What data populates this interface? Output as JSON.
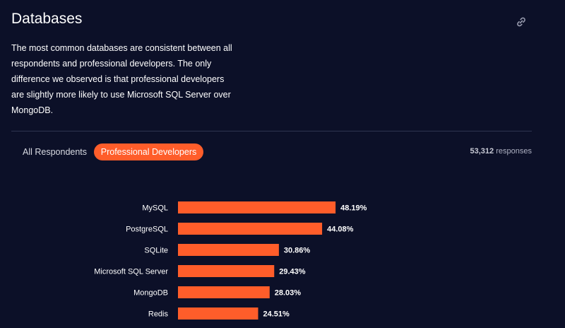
{
  "section": {
    "title": "Databases",
    "link_icon": "link-icon",
    "description": "The most common databases are consistent between all respondents and professional developers. The only difference we observed is that professional developers are slightly more likely to use Microsoft SQL Server over MongoDB."
  },
  "tabs": {
    "all_respondents": "All Respondents",
    "professional_developers": "Professional Developers",
    "active": "professional_developers"
  },
  "responses": {
    "count": "53,312",
    "label": "responses"
  },
  "colors": {
    "background": "#0c1028",
    "bar": "#ff5d2a",
    "text": "#ffffff"
  },
  "chart_data": {
    "type": "bar",
    "orientation": "horizontal",
    "categories": [
      "MySQL",
      "PostgreSQL",
      "SQLite",
      "Microsoft SQL Server",
      "MongoDB",
      "Redis"
    ],
    "values": [
      48.19,
      44.08,
      30.86,
      29.43,
      28.03,
      24.51
    ],
    "value_labels": [
      "48.19%",
      "44.08%",
      "30.86%",
      "29.43%",
      "28.03%",
      "24.51%"
    ],
    "unit": "%",
    "xlim": [
      0,
      100
    ],
    "grid": false,
    "legend": "none"
  }
}
